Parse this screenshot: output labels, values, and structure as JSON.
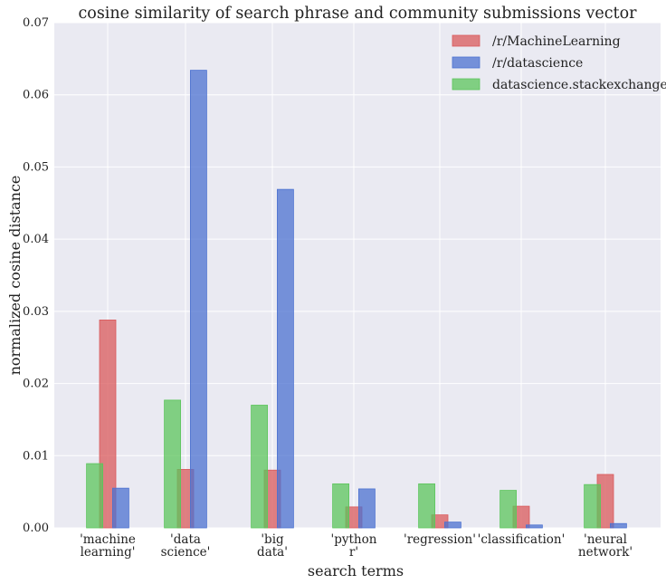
{
  "chart_data": {
    "type": "bar",
    "title": "cosine similarity of search phrase and community submissions vector",
    "xlabel": "search terms",
    "ylabel": "normalized cosine distance",
    "ylim": [
      0,
      0.07
    ],
    "yticks": [
      "0.00",
      "0.01",
      "0.02",
      "0.03",
      "0.04",
      "0.05",
      "0.06",
      "0.07"
    ],
    "ytick_values": [
      0,
      0.01,
      0.02,
      0.03,
      0.04,
      0.05,
      0.06,
      0.07
    ],
    "grid": true,
    "legend_position": "top-right",
    "categories": [
      [
        "'machine",
        "learning'"
      ],
      [
        "'data",
        "science'"
      ],
      [
        "'big",
        "data'"
      ],
      [
        "'python",
        "r'"
      ],
      [
        "'regression'"
      ],
      [
        "'classification'"
      ],
      [
        "'neural",
        "network'"
      ]
    ],
    "series": [
      {
        "name": "/r/MachineLearning",
        "color": "#d9595b",
        "offset": 0,
        "values": [
          0.0288,
          0.0081,
          0.008,
          0.0029,
          0.0018,
          0.003,
          0.0074
        ]
      },
      {
        "name": "/r/datascience",
        "color": "#4c72d0",
        "offset": 0.8,
        "values": [
          0.0055,
          0.0634,
          0.0469,
          0.0054,
          0.0008,
          0.0004,
          0.0006
        ]
      },
      {
        "name": "datascience.stackexchange",
        "color": "#5cc55c",
        "offset": -0.8,
        "values": [
          0.0089,
          0.0177,
          0.017,
          0.0061,
          0.0061,
          0.0052,
          0.006
        ]
      }
    ]
  }
}
